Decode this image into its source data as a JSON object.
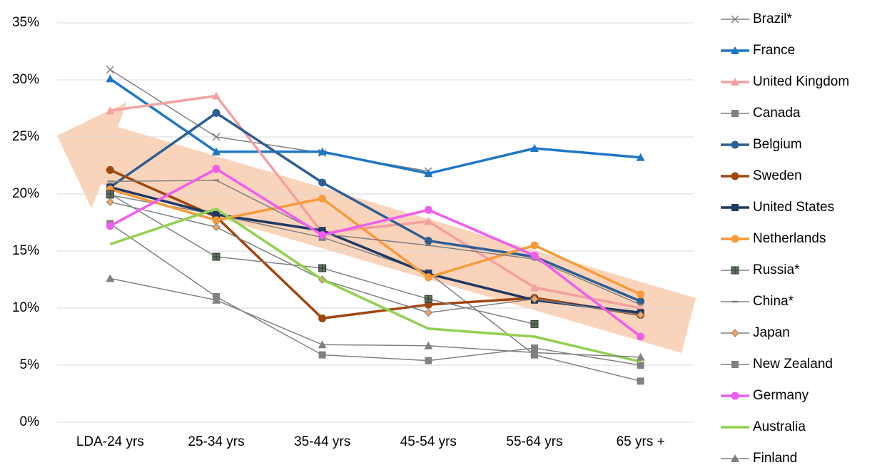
{
  "chart_data": {
    "type": "line",
    "categories": [
      "LDA-24 yrs",
      "25-34 yrs",
      "35-44 yrs",
      "45-54 yrs",
      "55-64 yrs",
      "65 yrs +"
    ],
    "ylim": [
      0,
      35
    ],
    "yticks": [
      {
        "value": 0,
        "label": "0%"
      },
      {
        "value": 5,
        "label": "5%"
      },
      {
        "value": 10,
        "label": "10%"
      },
      {
        "value": 15,
        "label": "15%"
      },
      {
        "value": 20,
        "label": "20%"
      },
      {
        "value": 25,
        "label": "25%"
      },
      {
        "value": 30,
        "label": "30%"
      },
      {
        "value": 35,
        "label": "35%"
      }
    ],
    "grid": true,
    "legend": "right",
    "series": [
      {
        "name": "Brazil*",
        "color": "#808080",
        "marker": "x",
        "values": [
          30.9,
          25.0,
          23.6,
          22.0,
          null,
          null
        ]
      },
      {
        "name": "France",
        "color": "#1f77c4",
        "marker": "triangle",
        "values": [
          30.1,
          23.7,
          23.7,
          21.8,
          24.0,
          23.2
        ]
      },
      {
        "name": "United Kingdom",
        "color": "#f4a0a0",
        "marker": "triangle",
        "values": [
          27.3,
          28.6,
          16.6,
          17.6,
          11.8,
          10.0
        ]
      },
      {
        "name": "Canada",
        "color": "#808080",
        "marker": "square",
        "values": [
          19.9,
          18.2,
          16.2,
          13.1,
          5.9,
          3.6
        ]
      },
      {
        "name": "Belgium",
        "color": "#2e5f94",
        "marker": "circle",
        "values": [
          20.6,
          27.1,
          21.0,
          15.9,
          14.5,
          10.6
        ]
      },
      {
        "name": "Sweden",
        "color": "#a0460f",
        "marker": "circle",
        "values": [
          22.1,
          18.0,
          9.1,
          10.3,
          10.9,
          9.4
        ]
      },
      {
        "name": "United States",
        "color": "#1f3864",
        "marker": "square",
        "values": [
          20.6,
          18.2,
          16.8,
          13.0,
          10.7,
          9.6
        ]
      },
      {
        "name": "Netherlands",
        "color": "#f79a3a",
        "marker": "circle",
        "values": [
          20.4,
          17.7,
          19.6,
          12.7,
          15.5,
          11.2
        ]
      },
      {
        "name": "Russia*",
        "color": "#808080",
        "marker": "plus",
        "values": [
          20.0,
          14.5,
          13.5,
          10.8,
          8.6,
          null
        ]
      },
      {
        "name": "China*",
        "color": "#808080",
        "marker": "dash",
        "values": [
          21.1,
          21.2,
          16.5,
          15.5,
          14.3,
          10.3
        ]
      },
      {
        "name": "Japan",
        "color": "#808080",
        "marker": "diamond",
        "values": [
          19.3,
          17.1,
          12.5,
          9.6,
          10.8,
          9.4
        ]
      },
      {
        "name": "New Zealand",
        "color": "#808080",
        "marker": "square",
        "values": [
          17.4,
          11.0,
          5.9,
          5.4,
          6.5,
          5.0
        ]
      },
      {
        "name": "Germany",
        "color": "#f05cf0",
        "marker": "circle",
        "values": [
          17.2,
          22.2,
          16.4,
          18.6,
          14.6,
          7.5
        ]
      },
      {
        "name": "Australia",
        "color": "#92d050",
        "marker": "none",
        "values": [
          15.6,
          18.7,
          12.5,
          8.2,
          7.5,
          5.3
        ]
      },
      {
        "name": "Finland",
        "color": "#808080",
        "marker": "triangle",
        "values": [
          12.6,
          10.7,
          6.8,
          6.7,
          6.1,
          5.7
        ]
      }
    ]
  }
}
